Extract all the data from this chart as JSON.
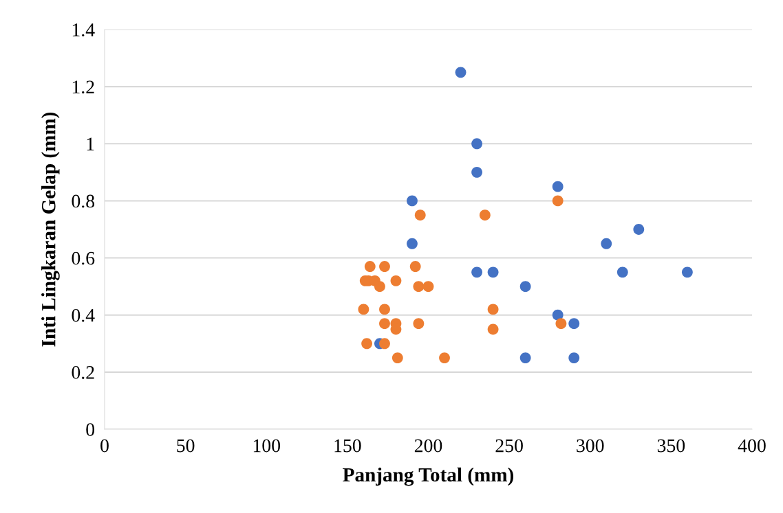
{
  "chart_data": {
    "type": "scatter",
    "xlabel": "Panjang Total (mm)",
    "ylabel": "Inti Lingkaran Gelap (mm)",
    "xlim": [
      0,
      400
    ],
    "xticks": [
      0,
      50,
      100,
      150,
      200,
      250,
      300,
      350,
      400
    ],
    "ylim": [
      0,
      1.4
    ],
    "yticks": [
      {
        "value": 0,
        "label": "0"
      },
      {
        "value": 0.2,
        "label": "0.2"
      },
      {
        "value": 0.4,
        "label": "0.4"
      },
      {
        "value": 0.6,
        "label": "0.6"
      },
      {
        "value": 0.8,
        "label": "0.8"
      },
      {
        "value": 1,
        "label": "1"
      },
      {
        "value": 1.2,
        "label": "1.2"
      },
      {
        "value": 1.4,
        "label": "1.4"
      }
    ],
    "grid": "y",
    "marker": "circle",
    "series": [
      {
        "color": "#4472c4",
        "x": [
          220,
          230,
          230,
          280,
          190,
          190,
          310,
          330,
          230,
          240,
          320,
          360,
          260,
          280,
          290,
          170,
          260,
          290
        ],
        "values": [
          1.25,
          1.0,
          0.9,
          0.85,
          0.8,
          0.65,
          0.65,
          0.7,
          0.55,
          0.55,
          0.55,
          0.55,
          0.5,
          0.4,
          0.37,
          0.3,
          0.25,
          0.25
        ]
      },
      {
        "color": "#ed7d31",
        "x": [
          160,
          161,
          163,
          164,
          167,
          170,
          162,
          173,
          173,
          173,
          173,
          180,
          180,
          180,
          181,
          192,
          194,
          194,
          195,
          200,
          210,
          235,
          240,
          240,
          280,
          282
        ],
        "values": [
          0.42,
          0.52,
          0.52,
          0.57,
          0.52,
          0.5,
          0.3,
          0.57,
          0.42,
          0.37,
          0.3,
          0.52,
          0.37,
          0.35,
          0.25,
          0.57,
          0.5,
          0.37,
          0.75,
          0.5,
          0.25,
          0.75,
          0.42,
          0.35,
          0.8,
          0.37
        ]
      }
    ]
  }
}
